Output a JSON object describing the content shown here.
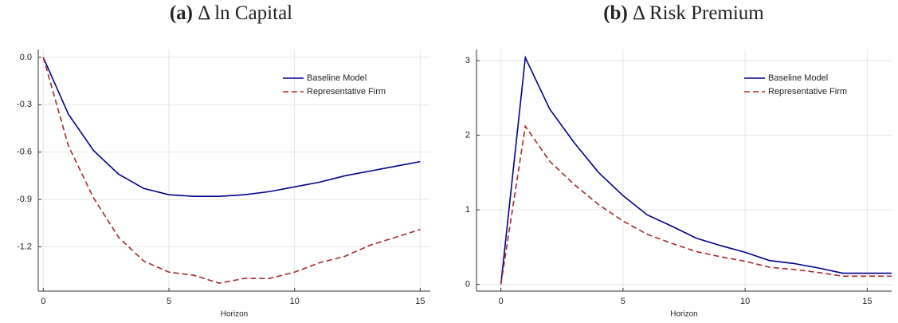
{
  "chart_data": [
    {
      "type": "line",
      "panel_label": "(a)",
      "title": "Δ ln Capital",
      "x_label": "Horizon",
      "x": [
        0,
        1,
        2,
        3,
        4,
        5,
        6,
        7,
        8,
        9,
        10,
        11,
        12,
        13,
        14,
        15
      ],
      "series": [
        {
          "name": "Baseline Model",
          "color": "#00008b",
          "dashed": false,
          "values": [
            0,
            -0.36,
            -0.59,
            -0.74,
            -0.83,
            -0.87,
            -0.88,
            -0.88,
            -0.87,
            -0.85,
            -0.82,
            -0.79,
            -0.75,
            -0.72,
            -0.69,
            -0.66
          ]
        },
        {
          "name": "Representative Firm",
          "color": "#a52a2a",
          "dashed": true,
          "values": [
            0,
            -0.56,
            -0.89,
            -1.14,
            -1.29,
            -1.36,
            -1.38,
            -1.43,
            -1.4,
            -1.4,
            -1.36,
            -1.3,
            -1.26,
            -1.19,
            -1.14,
            -1.09
          ]
        }
      ],
      "xlim": [
        -0.2,
        15.4
      ],
      "xticks": [
        0,
        5,
        10,
        15
      ],
      "ylim": [
        -1.48,
        0.05
      ],
      "yticks": [
        {
          "value": 0,
          "label": "0.0"
        },
        -0.3,
        -0.6,
        -0.9,
        -1.2
      ],
      "grid": true,
      "legend": "upper right"
    },
    {
      "type": "line",
      "panel_label": "(b)",
      "title": "Δ Risk Premium",
      "x_label": "Horizon",
      "x": [
        0,
        1,
        2,
        3,
        4,
        5,
        6,
        7,
        8,
        9,
        10,
        11,
        12,
        13,
        14,
        15,
        16
      ],
      "series": [
        {
          "name": "Baseline Model",
          "color": "#00008b",
          "dashed": false,
          "values": [
            0,
            3.04,
            2.35,
            1.9,
            1.5,
            1.19,
            0.93,
            0.78,
            0.62,
            0.52,
            0.43,
            0.32,
            0.28,
            0.22,
            0.15,
            0.15,
            0.15
          ]
        },
        {
          "name": "Representative Firm",
          "color": "#a52a2a",
          "dashed": true,
          "values": [
            0,
            2.12,
            1.65,
            1.34,
            1.07,
            0.85,
            0.67,
            0.55,
            0.44,
            0.37,
            0.31,
            0.23,
            0.2,
            0.16,
            0.11,
            0.11,
            0.11
          ]
        }
      ],
      "xlim": [
        -1.0,
        16.0
      ],
      "xticks": [
        0,
        5,
        10,
        15
      ],
      "ylim": [
        -0.09,
        3.15
      ],
      "yticks": [
        0,
        1,
        2,
        3
      ],
      "grid": true,
      "legend": "upper right"
    }
  ]
}
